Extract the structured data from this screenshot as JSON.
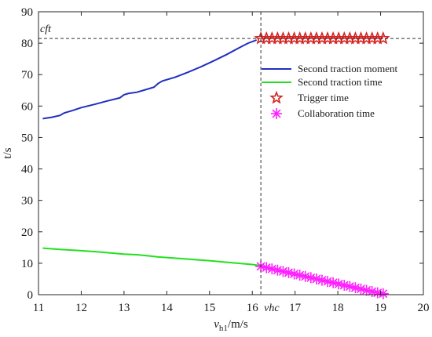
{
  "chart_data": {
    "type": "line",
    "xlabel_var": "v",
    "xlabel_sub": "h1",
    "xlabel_unit": "/m/s",
    "ylabel": "t/s",
    "xlim": [
      11,
      20
    ],
    "ylim": [
      0,
      90
    ],
    "x_ticks": [
      11,
      12,
      13,
      14,
      15,
      16,
      17,
      18,
      19,
      20
    ],
    "y_ticks": [
      0,
      10,
      20,
      30,
      40,
      50,
      60,
      70,
      80,
      90
    ],
    "grid": false,
    "legend_position": "right",
    "annotations": {
      "cft_label": "cft",
      "cft_value": 81.5,
      "vhc_label": "vhc",
      "vhc_value": 16.2
    },
    "series": [
      {
        "name": "Second traction moment",
        "color": "#1f2fbf",
        "marker": "none",
        "x": [
          11.1,
          11.3,
          11.5,
          11.6,
          11.8,
          12.0,
          12.3,
          12.6,
          12.9,
          13.0,
          13.1,
          13.3,
          13.5,
          13.7,
          13.8,
          13.9,
          14.2,
          14.5,
          14.8,
          15.1,
          15.4,
          15.7,
          15.9,
          16.1
        ],
        "y": [
          56.0,
          56.4,
          57.0,
          57.8,
          58.6,
          59.5,
          60.5,
          61.6,
          62.6,
          63.6,
          64.0,
          64.4,
          65.2,
          66.0,
          67.2,
          68.0,
          69.2,
          70.8,
          72.5,
          74.4,
          76.4,
          78.6,
          80.0,
          81.0
        ]
      },
      {
        "name": "Second traction time",
        "color": "#22e01e",
        "marker": "none",
        "x": [
          11.1,
          11.5,
          12.0,
          12.5,
          13.0,
          13.3,
          13.6,
          13.8,
          14.0,
          14.5,
          15.0,
          15.5,
          16.0,
          16.2
        ],
        "y": [
          14.8,
          14.4,
          14.0,
          13.5,
          12.9,
          12.7,
          12.3,
          12.0,
          11.8,
          11.3,
          10.8,
          10.2,
          9.6,
          9.2
        ]
      },
      {
        "name": "Trigger time",
        "color": "#d42020",
        "marker": "star-open",
        "x": [
          16.2,
          16.33,
          16.46,
          16.59,
          16.72,
          16.85,
          16.98,
          17.11,
          17.24,
          17.37,
          17.5,
          17.63,
          17.76,
          17.89,
          18.02,
          18.15,
          18.28,
          18.41,
          18.54,
          18.67,
          18.8,
          18.93,
          19.06
        ],
        "y": [
          81.5,
          81.5,
          81.5,
          81.5,
          81.5,
          81.5,
          81.5,
          81.5,
          81.5,
          81.5,
          81.5,
          81.5,
          81.5,
          81.5,
          81.5,
          81.5,
          81.5,
          81.5,
          81.5,
          81.5,
          81.5,
          81.5,
          81.5
        ]
      },
      {
        "name": "Collaboration time",
        "color": "#ff1fff",
        "marker": "asterisk",
        "x": [
          16.2,
          16.33,
          16.46,
          16.59,
          16.72,
          16.85,
          16.98,
          17.11,
          17.24,
          17.37,
          17.5,
          17.63,
          17.76,
          17.89,
          18.02,
          18.15,
          18.28,
          18.41,
          18.54,
          18.67,
          18.8,
          18.93,
          19.06
        ],
        "y": [
          9.0,
          8.6,
          8.2,
          7.8,
          7.4,
          7.0,
          6.6,
          6.2,
          5.8,
          5.4,
          5.0,
          4.6,
          4.2,
          3.8,
          3.4,
          3.0,
          2.6,
          2.2,
          1.8,
          1.4,
          1.0,
          0.6,
          0.3
        ]
      }
    ]
  }
}
